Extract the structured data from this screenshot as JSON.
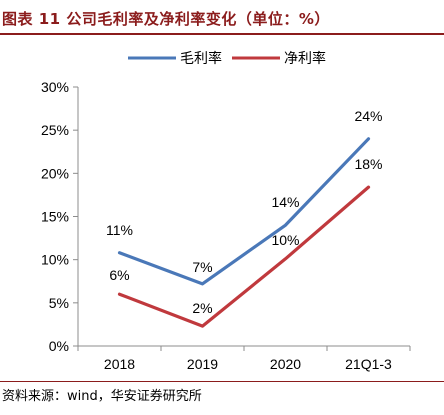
{
  "title": "图表 11  公司毛利率及净利率变化（单位：%）",
  "source": "资料来源：wind，华安证券研究所",
  "chart_data": {
    "type": "line",
    "categories": [
      "2018",
      "2019",
      "2020",
      "21Q1-3"
    ],
    "ylim": [
      0,
      30
    ],
    "yticks": [
      "0%",
      "5%",
      "10%",
      "15%",
      "20%",
      "25%",
      "30%"
    ],
    "legend_position": "top-center",
    "grid": false,
    "series": [
      {
        "name": "毛利率",
        "color": "#4a78b8",
        "values": [
          10.8,
          7.2,
          14.0,
          24.0
        ],
        "labels": [
          "11%",
          "7%",
          "14%",
          "24%"
        ]
      },
      {
        "name": "净利率",
        "color": "#c0393d",
        "values": [
          6.0,
          2.3,
          10.1,
          18.4
        ],
        "labels": [
          "6%",
          "2%",
          "10%",
          "18%"
        ]
      }
    ]
  }
}
